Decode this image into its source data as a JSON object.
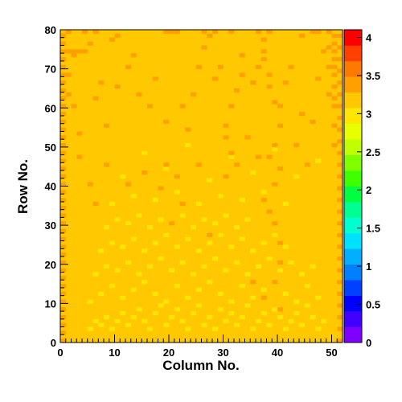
{
  "chart_data": {
    "type": "heatmap",
    "xlabel": "Column No.",
    "ylabel": "Row No.",
    "xlim": [
      0,
      52
    ],
    "ylim": [
      0,
      80
    ],
    "zlim": [
      0,
      4.1
    ],
    "x_ticks": [
      0,
      10,
      20,
      30,
      40,
      50
    ],
    "y_ticks": [
      0,
      10,
      20,
      30,
      40,
      50,
      60,
      70,
      80
    ],
    "z_ticks": [
      0,
      0.5,
      1,
      1.5,
      2,
      2.5,
      3,
      3.5,
      4
    ],
    "x_tick_labels": [
      "0",
      "10",
      "20",
      "30",
      "40",
      "50"
    ],
    "y_tick_labels": [
      "0",
      "10",
      "20",
      "30",
      "40",
      "50",
      "60",
      "70",
      "80"
    ],
    "z_tick_labels": [
      "0",
      "0.5",
      "1",
      "1.5",
      "2",
      "2.5",
      "3",
      "3.5",
      "4"
    ],
    "palette_colors": [
      "#7f00ff",
      "#4000ff",
      "#0000ff",
      "#0040ff",
      "#0080ff",
      "#00b0ff",
      "#00e0ff",
      "#00ffd0",
      "#00ff90",
      "#00ff40",
      "#40ff00",
      "#80ff00",
      "#c0ff00",
      "#e8ff00",
      "#ffe600",
      "#ffc800",
      "#ffa000",
      "#ff7800",
      "#ff4000",
      "#ff0000"
    ],
    "background_value": 3.1,
    "cells_low": [
      [
        5,
        3
      ],
      [
        6,
        5
      ],
      [
        7,
        4
      ],
      [
        8,
        6
      ],
      [
        9,
        3
      ],
      [
        10,
        5
      ],
      [
        11,
        7
      ],
      [
        12,
        4
      ],
      [
        13,
        6
      ],
      [
        14,
        8
      ],
      [
        15,
        5
      ],
      [
        16,
        3
      ],
      [
        17,
        7
      ],
      [
        18,
        9
      ],
      [
        19,
        4
      ],
      [
        20,
        6
      ],
      [
        21,
        8
      ],
      [
        22,
        5
      ],
      [
        23,
        3
      ],
      [
        24,
        7
      ],
      [
        25,
        9
      ],
      [
        26,
        4
      ],
      [
        27,
        6
      ],
      [
        28,
        3
      ],
      [
        29,
        8
      ],
      [
        30,
        5
      ],
      [
        31,
        7
      ],
      [
        32,
        4
      ],
      [
        33,
        6
      ],
      [
        34,
        9
      ],
      [
        35,
        3
      ],
      [
        36,
        5
      ],
      [
        37,
        7
      ],
      [
        38,
        4
      ],
      [
        39,
        8
      ],
      [
        40,
        6
      ],
      [
        41,
        3
      ],
      [
        42,
        5
      ],
      [
        43,
        7
      ],
      [
        44,
        4
      ],
      [
        45,
        9
      ],
      [
        46,
        6
      ],
      [
        47,
        3
      ],
      [
        48,
        5
      ],
      [
        5,
        10
      ],
      [
        7,
        12
      ],
      [
        9,
        14
      ],
      [
        11,
        11
      ],
      [
        13,
        13
      ],
      [
        15,
        15
      ],
      [
        17,
        12
      ],
      [
        19,
        10
      ],
      [
        21,
        14
      ],
      [
        23,
        11
      ],
      [
        25,
        13
      ],
      [
        27,
        15
      ],
      [
        29,
        12
      ],
      [
        31,
        10
      ],
      [
        33,
        14
      ],
      [
        35,
        11
      ],
      [
        37,
        13
      ],
      [
        39,
        15
      ],
      [
        41,
        12
      ],
      [
        43,
        10
      ],
      [
        45,
        14
      ],
      [
        47,
        11
      ],
      [
        6,
        17
      ],
      [
        8,
        19
      ],
      [
        10,
        18
      ],
      [
        12,
        20
      ],
      [
        14,
        17
      ],
      [
        16,
        19
      ],
      [
        18,
        21
      ],
      [
        20,
        18
      ],
      [
        22,
        20
      ],
      [
        24,
        17
      ],
      [
        26,
        19
      ],
      [
        28,
        21
      ],
      [
        30,
        18
      ],
      [
        32,
        20
      ],
      [
        34,
        17
      ],
      [
        36,
        19
      ],
      [
        38,
        21
      ],
      [
        40,
        18
      ],
      [
        42,
        20
      ],
      [
        44,
        17
      ],
      [
        46,
        19
      ],
      [
        7,
        23
      ],
      [
        9,
        25
      ],
      [
        11,
        24
      ],
      [
        13,
        26
      ],
      [
        15,
        23
      ],
      [
        17,
        25
      ],
      [
        19,
        27
      ],
      [
        21,
        24
      ],
      [
        23,
        26
      ],
      [
        25,
        23
      ],
      [
        27,
        25
      ],
      [
        29,
        27
      ],
      [
        31,
        24
      ],
      [
        33,
        26
      ],
      [
        35,
        23
      ],
      [
        37,
        25
      ],
      [
        39,
        27
      ],
      [
        41,
        24
      ],
      [
        8,
        29
      ],
      [
        10,
        31
      ],
      [
        12,
        30
      ],
      [
        14,
        32
      ],
      [
        16,
        29
      ],
      [
        18,
        31
      ],
      [
        20,
        30
      ],
      [
        22,
        32
      ],
      [
        24,
        29
      ],
      [
        26,
        31
      ],
      [
        28,
        30
      ],
      [
        30,
        32
      ],
      [
        32,
        29
      ],
      [
        34,
        31
      ],
      [
        9,
        35
      ],
      [
        13,
        37
      ],
      [
        17,
        36
      ],
      [
        21,
        38
      ],
      [
        25,
        35
      ],
      [
        29,
        37
      ],
      [
        33,
        36
      ],
      [
        37,
        38
      ],
      [
        41,
        35
      ],
      [
        11,
        42
      ],
      [
        19,
        44
      ],
      [
        27,
        41
      ],
      [
        35,
        43
      ],
      [
        43,
        42
      ],
      [
        15,
        48
      ],
      [
        23,
        50
      ],
      [
        31,
        47
      ],
      [
        39,
        49
      ],
      [
        47,
        46
      ]
    ],
    "cells_high": [
      [
        0,
        0
      ],
      [
        0,
        2
      ],
      [
        0,
        4
      ],
      [
        0,
        6
      ],
      [
        0,
        8
      ],
      [
        0,
        10
      ],
      [
        0,
        12
      ],
      [
        0,
        14
      ],
      [
        0,
        16
      ],
      [
        0,
        18
      ],
      [
        0,
        20
      ],
      [
        0,
        22
      ],
      [
        0,
        24
      ],
      [
        0,
        26
      ],
      [
        0,
        28
      ],
      [
        0,
        30
      ],
      [
        0,
        32
      ],
      [
        0,
        34
      ],
      [
        0,
        36
      ],
      [
        0,
        38
      ],
      [
        0,
        40
      ],
      [
        0,
        42
      ],
      [
        0,
        44
      ],
      [
        0,
        46
      ],
      [
        0,
        48
      ],
      [
        0,
        50
      ],
      [
        0,
        52
      ],
      [
        0,
        54
      ],
      [
        0,
        56
      ],
      [
        0,
        58
      ],
      [
        0,
        60
      ],
      [
        0,
        62
      ],
      [
        0,
        64
      ],
      [
        0,
        66
      ],
      [
        0,
        68
      ],
      [
        0,
        70
      ],
      [
        0,
        72
      ],
      [
        0,
        74
      ],
      [
        0,
        76
      ],
      [
        0,
        78
      ],
      [
        51,
        0
      ],
      [
        51,
        3
      ],
      [
        51,
        6
      ],
      [
        51,
        9
      ],
      [
        51,
        12
      ],
      [
        51,
        15
      ],
      [
        51,
        18
      ],
      [
        51,
        21
      ],
      [
        51,
        24
      ],
      [
        51,
        27
      ],
      [
        51,
        30
      ],
      [
        51,
        33
      ],
      [
        51,
        36
      ],
      [
        51,
        39
      ],
      [
        51,
        42
      ],
      [
        51,
        45
      ],
      [
        51,
        48
      ],
      [
        51,
        51
      ],
      [
        51,
        54
      ],
      [
        51,
        57
      ],
      [
        51,
        60
      ],
      [
        51,
        63
      ],
      [
        51,
        66
      ],
      [
        51,
        69
      ],
      [
        51,
        72
      ],
      [
        51,
        75
      ],
      [
        51,
        78
      ],
      [
        50,
        50
      ],
      [
        50,
        55
      ],
      [
        50,
        60
      ],
      [
        50,
        62
      ],
      [
        50,
        65
      ],
      [
        50,
        68
      ],
      [
        50,
        70
      ],
      [
        50,
        72
      ],
      [
        50,
        74
      ],
      [
        50,
        76
      ],
      [
        50,
        78
      ],
      [
        49,
        63
      ],
      [
        49,
        70
      ],
      [
        49,
        75
      ],
      [
        49,
        79
      ],
      [
        1,
        74
      ],
      [
        2,
        74
      ],
      [
        3,
        74
      ],
      [
        4,
        74
      ],
      [
        1,
        79
      ],
      [
        2,
        73
      ],
      [
        1,
        68
      ],
      [
        1,
        63
      ],
      [
        2,
        60
      ],
      [
        4,
        79
      ],
      [
        5,
        76
      ],
      [
        6,
        79
      ],
      [
        9,
        77
      ],
      [
        10,
        78
      ],
      [
        19,
        79
      ],
      [
        20,
        79
      ],
      [
        21,
        79
      ],
      [
        26,
        79
      ],
      [
        27,
        78
      ],
      [
        28,
        79
      ],
      [
        31,
        79
      ],
      [
        36,
        79
      ],
      [
        37,
        77
      ],
      [
        38,
        79
      ],
      [
        44,
        78
      ],
      [
        46,
        79
      ],
      [
        47,
        79
      ],
      [
        36,
        70
      ],
      [
        37,
        72
      ],
      [
        37,
        74
      ],
      [
        38,
        68
      ],
      [
        38,
        65
      ],
      [
        39,
        61
      ],
      [
        40,
        60
      ],
      [
        40,
        55
      ],
      [
        39,
        50
      ],
      [
        38,
        47
      ],
      [
        40,
        44
      ],
      [
        39,
        40
      ],
      [
        37,
        36
      ],
      [
        38,
        33
      ],
      [
        39,
        30
      ],
      [
        40,
        25
      ],
      [
        40,
        20
      ],
      [
        39,
        15
      ],
      [
        40,
        8
      ],
      [
        33,
        73
      ],
      [
        33,
        68
      ],
      [
        32,
        64
      ],
      [
        31,
        60
      ],
      [
        30,
        55
      ],
      [
        30,
        52
      ],
      [
        31,
        48
      ],
      [
        32,
        45
      ],
      [
        29,
        70
      ],
      [
        24,
        63
      ],
      [
        23,
        54
      ],
      [
        19,
        56
      ],
      [
        19,
        45
      ],
      [
        21,
        42
      ],
      [
        14,
        63
      ],
      [
        16,
        60
      ],
      [
        7,
        66
      ],
      [
        6,
        62
      ],
      [
        15,
        43
      ],
      [
        18,
        39
      ],
      [
        10,
        65
      ],
      [
        12,
        70
      ],
      [
        25,
        70
      ],
      [
        26,
        75
      ],
      [
        28,
        67
      ],
      [
        35,
        66
      ],
      [
        42,
        70
      ],
      [
        41,
        66
      ],
      [
        44,
        58
      ],
      [
        46,
        56
      ],
      [
        47,
        67
      ],
      [
        48,
        74
      ],
      [
        45,
        45
      ],
      [
        43,
        50
      ],
      [
        34,
        52
      ],
      [
        36,
        47
      ],
      [
        30,
        42
      ],
      [
        25,
        45
      ],
      [
        22,
        35
      ],
      [
        20,
        30
      ],
      [
        12,
        40
      ],
      [
        8,
        45
      ],
      [
        6,
        35
      ],
      [
        3,
        53
      ],
      [
        3,
        47
      ],
      [
        5,
        40
      ],
      [
        27,
        27
      ],
      [
        35,
        15
      ],
      [
        37,
        11
      ],
      [
        22,
        60
      ],
      [
        17,
        67
      ],
      [
        13,
        73
      ],
      [
        8,
        55
      ]
    ]
  }
}
